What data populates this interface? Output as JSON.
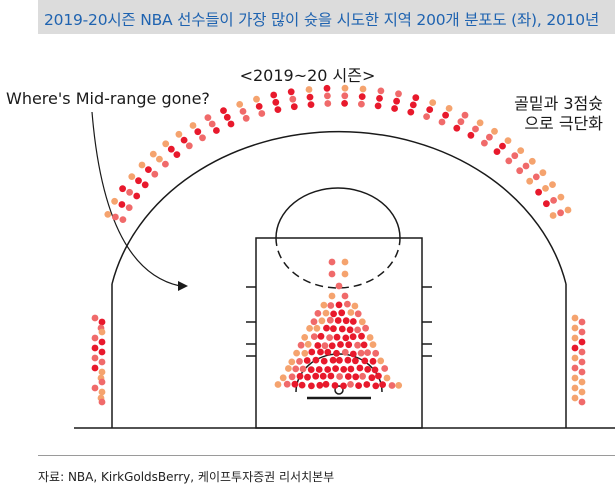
{
  "header": {
    "title": "2019-20시즌 NBA 선수들이 가장 많이 슛을 시도한 지역 200개 분포도 (좌), 2010년"
  },
  "diagram": {
    "season_label": "<2019~20 시즌>",
    "midrange_note": "Where's Mid-range gone?",
    "trend_note_line1": "골밑과 3점슛",
    "trend_note_line2": "으로 극단화"
  },
  "footer": {
    "source": "자료: NBA, KirkGoldsBerry, 케이프투자증권 리서치본부"
  },
  "colors": {
    "header_text": "#1f63b0",
    "header_bg": "#dcdcdc",
    "dot_high": "#e8192c",
    "dot_mid": "#f06a6a",
    "dot_low": "#f5a36e",
    "court_line": "#1a1a1a"
  }
}
